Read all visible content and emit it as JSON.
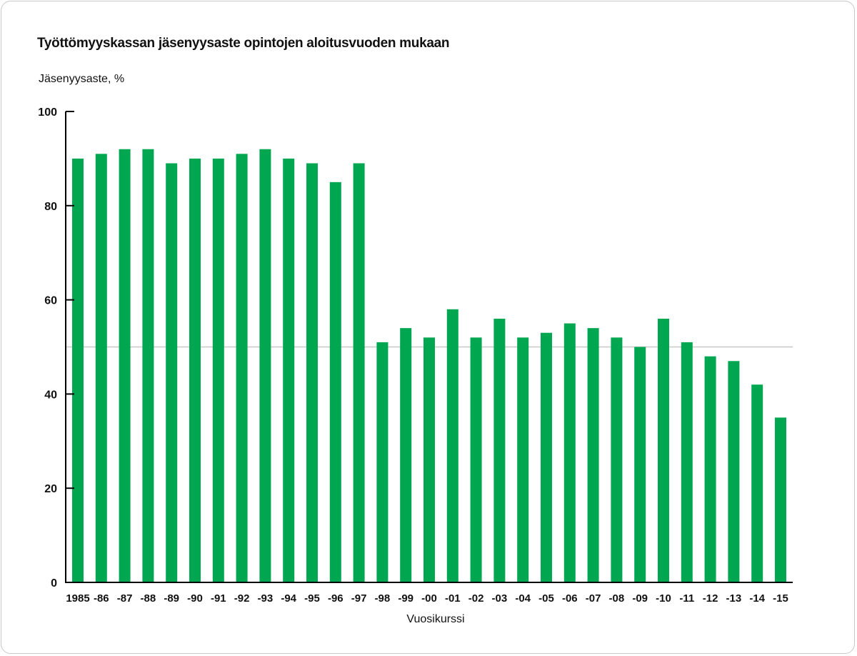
{
  "chart_data": {
    "type": "bar",
    "title": "Työttömyyskassan jäsenyysaste opintojen aloitusvuoden mukaan",
    "ylabel": "Jäsenyysaste, %",
    "xlabel": "Vuosikurssi",
    "ylim": [
      0,
      100
    ],
    "yticks": [
      0,
      20,
      40,
      60,
      80,
      100
    ],
    "reference_line": 50,
    "categories": [
      "1985",
      "-86",
      "-87",
      "-88",
      "-89",
      "-90",
      "-91",
      "-92",
      "-93",
      "-94",
      "-95",
      "-96",
      "-97",
      "-98",
      "-99",
      "-00",
      "-01",
      "-02",
      "-03",
      "-04",
      "-05",
      "-06",
      "-07",
      "-08",
      "-09",
      "-10",
      "-11",
      "-12",
      "-13",
      "-14",
      "-15"
    ],
    "values": [
      90,
      91,
      92,
      92,
      89,
      90,
      90,
      91,
      92,
      90,
      89,
      85,
      89,
      51,
      54,
      52,
      58,
      52,
      56,
      52,
      53,
      55,
      54,
      52,
      50,
      56,
      51,
      48,
      47,
      42,
      35
    ],
    "colors": {
      "bar": "#00a650",
      "axis": "#000000",
      "reference": "#c8c8c8"
    }
  }
}
